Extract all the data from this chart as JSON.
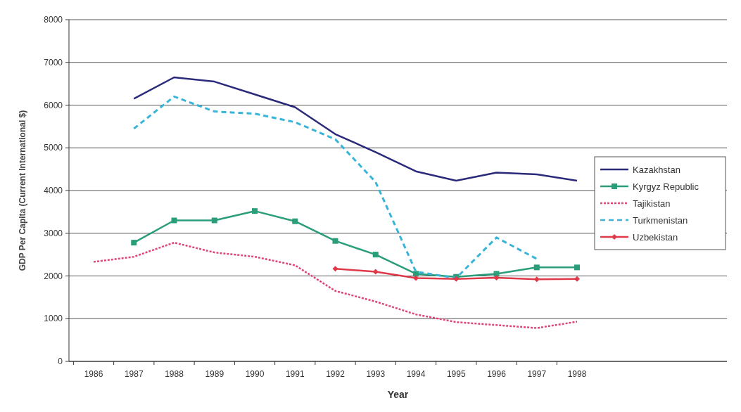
{
  "chart_data": {
    "type": "line",
    "xlabel": "Year",
    "ylabel": "GDP Per Capita (Current International $)",
    "categories": [
      "1986",
      "1987",
      "1988",
      "1989",
      "1990",
      "1991",
      "1992",
      "1993",
      "1994",
      "1995",
      "1996",
      "1997",
      "1998"
    ],
    "ylim": [
      0,
      8000
    ],
    "yticks": [
      0,
      1000,
      2000,
      3000,
      4000,
      5000,
      6000,
      7000,
      8000
    ],
    "grid": "y",
    "legend": "right",
    "series": [
      {
        "name": "Kazakhstan",
        "color": "#2b2a7a",
        "line_style": "solid",
        "marker": "none",
        "values": [
          null,
          6150,
          6650,
          6550,
          6250,
          5950,
          5320,
          4900,
          4450,
          4230,
          4420,
          4380,
          4230
        ]
      },
      {
        "name": "Kyrgyz Republic",
        "color": "#2a9d7a",
        "line_style": "solid",
        "marker": "square",
        "values": [
          null,
          2780,
          3300,
          3300,
          3520,
          3280,
          2820,
          2500,
          2050,
          1980,
          2050,
          2200,
          2200
        ]
      },
      {
        "name": "Tajikistan",
        "color": "#e0457a",
        "line_style": "dotted",
        "marker": "none",
        "values": [
          2330,
          2450,
          2780,
          2550,
          2450,
          2250,
          1650,
          1400,
          1100,
          920,
          850,
          780,
          930
        ]
      },
      {
        "name": "Turkmenistan",
        "color": "#3ab4d8",
        "line_style": "dashed",
        "marker": "none",
        "values": [
          null,
          5450,
          6200,
          5850,
          5800,
          5600,
          5200,
          4200,
          2100,
          1950,
          2900,
          2400,
          null
        ]
      },
      {
        "name": "Uzbekistan",
        "color": "#e03a4a",
        "line_style": "solid",
        "marker": "diamond",
        "values": [
          null,
          null,
          null,
          null,
          null,
          null,
          2170,
          2100,
          1950,
          1930,
          1960,
          1920,
          1930
        ]
      }
    ]
  }
}
